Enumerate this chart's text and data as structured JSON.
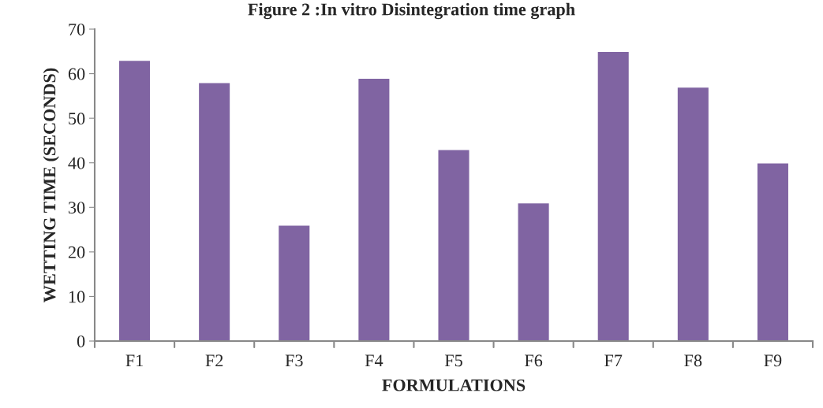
{
  "chart_data": {
    "type": "bar",
    "title": "Figure 2 :In vitro Disintegration time graph",
    "xlabel": "FORMULATIONS",
    "ylabel": "WETTING TIME (SECONDS)",
    "categories": [
      "F1",
      "F2",
      "F3",
      "F4",
      "F5",
      "F6",
      "F7",
      "F8",
      "F9"
    ],
    "values": [
      63,
      58,
      26,
      59,
      43,
      31,
      65,
      57,
      40
    ],
    "color": "#8064a2",
    "ylim": [
      0,
      70
    ],
    "yticks": [
      0,
      10,
      20,
      30,
      40,
      50,
      60,
      70
    ],
    "grid": false,
    "legend": false
  }
}
